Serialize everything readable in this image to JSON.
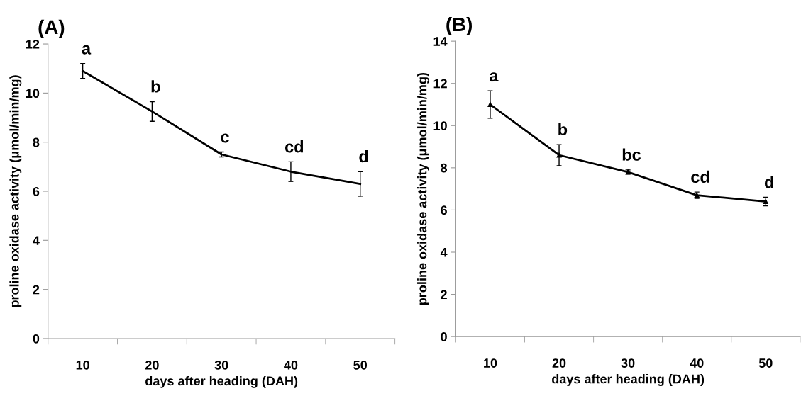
{
  "chart_data": [
    {
      "type": "line",
      "title": "(A)",
      "xlabel": "days after heading (DAH)",
      "ylabel": "proline oxidase activity (μmol/min/mg)",
      "categories": [
        "10",
        "20",
        "30",
        "40",
        "50"
      ],
      "series": [
        {
          "color": "#000000",
          "values": [
            10.9,
            9.25,
            7.5,
            6.8,
            6.3
          ],
          "errors": [
            0.3,
            0.4,
            0.1,
            0.4,
            0.5
          ]
        }
      ],
      "ylim": [
        0,
        12
      ],
      "yticks": [
        0,
        2,
        4,
        6,
        8,
        10,
        12
      ],
      "grid": false,
      "legend": false,
      "marker": "none",
      "line_style": "solid",
      "annotations": [
        {
          "text": "a",
          "x": "10",
          "y": 10.9
        },
        {
          "text": "b",
          "x": "20",
          "y": 9.25
        },
        {
          "text": "c",
          "x": "30",
          "y": 7.5
        },
        {
          "text": "cd",
          "x": "40",
          "y": 6.8
        },
        {
          "text": "d",
          "x": "50",
          "y": 6.3
        }
      ]
    },
    {
      "type": "line",
      "title": "(B)",
      "xlabel": "days after heading (DAH)",
      "ylabel": "proline oxidase activity (μmol/min/mg)",
      "categories": [
        "10",
        "20",
        "30",
        "40",
        "50"
      ],
      "series": [
        {
          "color": "#000000",
          "values": [
            11.0,
            8.6,
            7.8,
            6.7,
            6.4
          ],
          "errors": [
            0.65,
            0.5,
            0.1,
            0.15,
            0.2
          ]
        }
      ],
      "ylim": [
        0,
        14
      ],
      "yticks": [
        0,
        2,
        4,
        6,
        8,
        10,
        12,
        14
      ],
      "grid": false,
      "legend": false,
      "marker": "triangle",
      "line_style": "solid",
      "annotations": [
        {
          "text": "a",
          "x": "10",
          "y": 11.0
        },
        {
          "text": "b",
          "x": "20",
          "y": 8.6
        },
        {
          "text": "bc",
          "x": "30",
          "y": 7.8
        },
        {
          "text": "cd",
          "x": "40",
          "y": 6.7
        },
        {
          "text": "d",
          "x": "50",
          "y": 6.4
        }
      ]
    }
  ]
}
